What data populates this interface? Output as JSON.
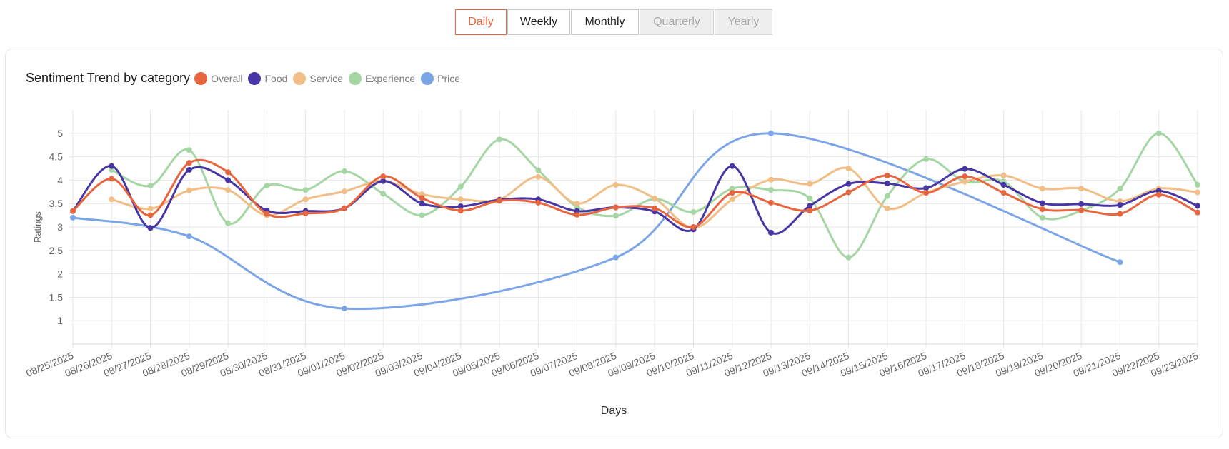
{
  "period_tabs": [
    {
      "label": "Daily",
      "state": "active"
    },
    {
      "label": "Weekly",
      "state": "normal"
    },
    {
      "label": "Monthly",
      "state": "normal"
    },
    {
      "label": "Quarterly",
      "state": "disabled"
    },
    {
      "label": "Yearly",
      "state": "disabled"
    }
  ],
  "chart_data": {
    "type": "line",
    "title": "Sentiment Trend by category",
    "xlabel": "Days",
    "ylabel": "Ratings",
    "ylim": [
      0.5,
      5.5
    ],
    "yticks": [
      1,
      1.5,
      2,
      2.5,
      3,
      3.5,
      4,
      4.5,
      5
    ],
    "grid": true,
    "legend_position": "top-left",
    "curve": "smooth",
    "x": [
      "08/25/2025",
      "08/26/2025",
      "08/27/2025",
      "08/28/2025",
      "08/29/2025",
      "08/30/2025",
      "08/31/2025",
      "09/01/2025",
      "09/02/2025",
      "09/03/2025",
      "09/04/2025",
      "09/05/2025",
      "09/06/2025",
      "09/07/2025",
      "09/08/2025",
      "09/09/2025",
      "09/10/2025",
      "09/11/2025",
      "09/12/2025",
      "09/13/2025",
      "09/14/2025",
      "09/15/2025",
      "09/16/2025",
      "09/17/2025",
      "09/18/2025",
      "09/19/2025",
      "09/20/2025",
      "09/21/2025",
      "09/22/2025",
      "09/23/2025"
    ],
    "series": [
      {
        "name": "Overall",
        "color": "#e8663f",
        "values": [
          3.34,
          4.03,
          3.25,
          4.37,
          4.17,
          3.28,
          3.29,
          3.4,
          4.08,
          3.62,
          3.35,
          3.56,
          3.52,
          3.26,
          3.42,
          3.4,
          3.0,
          3.73,
          3.52,
          3.35,
          3.74,
          4.1,
          3.73,
          4.08,
          3.73,
          3.38,
          3.36,
          3.28,
          3.69,
          3.31
        ]
      },
      {
        "name": "Food",
        "color": "#4637a5",
        "values": [
          3.34,
          4.3,
          2.98,
          4.22,
          4.0,
          3.35,
          3.34,
          3.4,
          3.98,
          3.5,
          3.44,
          3.58,
          3.59,
          3.34,
          3.42,
          3.33,
          2.95,
          4.3,
          2.88,
          3.45,
          3.92,
          3.93,
          3.83,
          4.24,
          3.9,
          3.51,
          3.49,
          3.47,
          3.77,
          3.45
        ]
      },
      {
        "name": "Service",
        "color": "#f0be86",
        "values": [
          null,
          3.59,
          3.39,
          3.78,
          3.79,
          3.25,
          3.59,
          3.76,
          3.98,
          3.7,
          3.59,
          3.59,
          4.07,
          3.5,
          3.9,
          3.61,
          2.98,
          3.59,
          4.01,
          3.92,
          4.25,
          3.4,
          3.73,
          3.97,
          4.1,
          3.82,
          3.82,
          3.55,
          3.82,
          3.74
        ]
      },
      {
        "name": "Experience",
        "color": "#a5d6a4",
        "values": [
          null,
          4.22,
          3.88,
          4.64,
          3.08,
          3.88,
          3.79,
          4.19,
          3.71,
          3.25,
          3.86,
          4.87,
          4.21,
          3.43,
          3.24,
          3.6,
          3.32,
          3.82,
          3.79,
          3.61,
          2.35,
          3.66,
          4.45,
          3.97,
          3.97,
          3.2,
          3.35,
          3.82,
          5.0,
          3.9
        ]
      },
      {
        "name": "Price",
        "color": "#7ca5e8",
        "values": [
          3.2,
          null,
          null,
          2.8,
          null,
          null,
          null,
          1.26,
          null,
          null,
          null,
          null,
          null,
          null,
          2.35,
          null,
          null,
          null,
          5.0,
          null,
          null,
          null,
          null,
          null,
          null,
          null,
          null,
          2.25,
          null,
          null
        ]
      }
    ]
  }
}
